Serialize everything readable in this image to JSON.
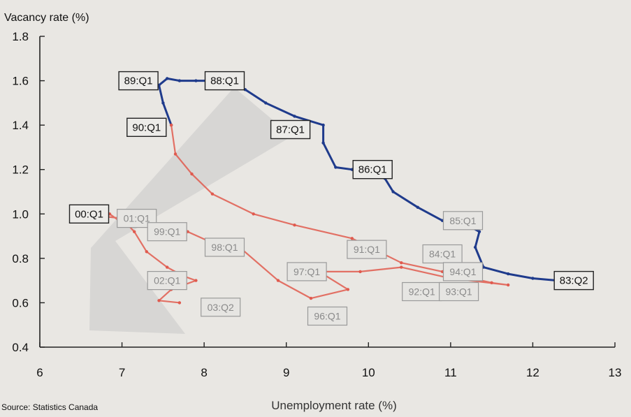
{
  "chart_data": {
    "type": "line",
    "title": "",
    "ylabel": "Vacancy rate (%)",
    "xlabel": "Unemployment rate (%)",
    "source": "Source: Statistics Canada",
    "xlim": [
      6,
      13
    ],
    "ylim": [
      0.4,
      1.8
    ],
    "xticks": [
      "6",
      "7",
      "8",
      "9",
      "10",
      "11",
      "12",
      "13"
    ],
    "yticks": [
      "0.4",
      "0.6",
      "0.8",
      "1.0",
      "1.2",
      "1.4",
      "1.6",
      "1.8"
    ],
    "grid": false,
    "colors": {
      "early": "#1f3b8c",
      "mid": "#5a78b8",
      "late": "#e05a4e",
      "arrow": "#c9c9c9"
    },
    "series": [
      {
        "period": "1983-1990",
        "color": "#1f3b8c",
        "points": [
          [
            12.3,
            0.7
          ],
          [
            12.0,
            0.71
          ],
          [
            11.7,
            0.73
          ],
          [
            11.4,
            0.76
          ],
          [
            11.3,
            0.85
          ],
          [
            11.35,
            0.92
          ],
          [
            11.2,
            0.95
          ],
          [
            10.9,
            0.97
          ],
          [
            10.6,
            1.03
          ],
          [
            10.3,
            1.1
          ],
          [
            10.2,
            1.16
          ],
          [
            9.8,
            1.2
          ],
          [
            9.6,
            1.21
          ],
          [
            9.45,
            1.32
          ],
          [
            9.45,
            1.4
          ],
          [
            9.1,
            1.44
          ],
          [
            8.75,
            1.5
          ],
          [
            8.5,
            1.56
          ],
          [
            8.2,
            1.6
          ],
          [
            7.9,
            1.6
          ],
          [
            7.7,
            1.6
          ],
          [
            7.55,
            1.61
          ],
          [
            7.45,
            1.58
          ],
          [
            7.5,
            1.5
          ],
          [
            7.6,
            1.4
          ]
        ]
      },
      {
        "period": "1990-2003",
        "color": "#e05a4e",
        "points": [
          [
            7.6,
            1.4
          ],
          [
            7.65,
            1.27
          ],
          [
            7.85,
            1.18
          ],
          [
            8.1,
            1.09
          ],
          [
            8.6,
            1.0
          ],
          [
            9.1,
            0.95
          ],
          [
            9.8,
            0.89
          ],
          [
            10.4,
            0.78
          ],
          [
            10.9,
            0.74
          ],
          [
            11.5,
            0.69
          ],
          [
            11.7,
            0.68
          ],
          [
            11.0,
            0.71
          ],
          [
            10.4,
            0.76
          ],
          [
            9.9,
            0.74
          ],
          [
            9.4,
            0.74
          ],
          [
            9.75,
            0.66
          ],
          [
            9.3,
            0.62
          ],
          [
            8.9,
            0.7
          ],
          [
            8.4,
            0.86
          ],
          [
            8.1,
            0.87
          ],
          [
            7.8,
            0.92
          ],
          [
            7.4,
            0.94
          ],
          [
            7.0,
            0.96
          ],
          [
            6.85,
            1.0
          ],
          [
            6.75,
            0.99
          ],
          [
            7.0,
            0.98
          ],
          [
            7.15,
            0.92
          ],
          [
            7.3,
            0.83
          ],
          [
            7.55,
            0.76
          ],
          [
            7.75,
            0.72
          ],
          [
            7.9,
            0.7
          ],
          [
            7.6,
            0.66
          ],
          [
            7.45,
            0.61
          ],
          [
            7.7,
            0.6
          ]
        ]
      }
    ],
    "annotations": [
      {
        "text": "89:Q1",
        "x": 7.2,
        "y": 1.6,
        "style": "dark"
      },
      {
        "text": "88:Q1",
        "x": 8.25,
        "y": 1.6,
        "style": "dark"
      },
      {
        "text": "90:Q1",
        "x": 7.3,
        "y": 1.39,
        "style": "dark"
      },
      {
        "text": "87:Q1",
        "x": 9.05,
        "y": 1.38,
        "style": "dark"
      },
      {
        "text": "86:Q1",
        "x": 10.05,
        "y": 1.2,
        "style": "dark"
      },
      {
        "text": "85:Q1",
        "x": 11.15,
        "y": 0.97,
        "style": "light"
      },
      {
        "text": "00:Q1",
        "x": 6.6,
        "y": 1.0,
        "style": "dark"
      },
      {
        "text": "01:Q1",
        "x": 7.18,
        "y": 0.98,
        "style": "light"
      },
      {
        "text": "99:Q1",
        "x": 7.55,
        "y": 0.92,
        "style": "light"
      },
      {
        "text": "98:Q1",
        "x": 8.25,
        "y": 0.85,
        "style": "light"
      },
      {
        "text": "91:Q1",
        "x": 9.98,
        "y": 0.84,
        "style": "light"
      },
      {
        "text": "84:Q1",
        "x": 10.9,
        "y": 0.82,
        "style": "light"
      },
      {
        "text": "97:Q1",
        "x": 9.25,
        "y": 0.74,
        "style": "light"
      },
      {
        "text": "94:Q1",
        "x": 11.15,
        "y": 0.74,
        "style": "light"
      },
      {
        "text": "83:Q2",
        "x": 12.5,
        "y": 0.7,
        "style": "dark"
      },
      {
        "text": "02:Q1",
        "x": 7.55,
        "y": 0.7,
        "style": "light"
      },
      {
        "text": "92:Q1",
        "x": 10.65,
        "y": 0.65,
        "style": "light"
      },
      {
        "text": "93:Q1",
        "x": 11.1,
        "y": 0.65,
        "style": "light"
      },
      {
        "text": "03:Q2",
        "x": 8.2,
        "y": 0.58,
        "style": "light"
      },
      {
        "text": "96:Q1",
        "x": 9.5,
        "y": 0.54,
        "style": "light"
      }
    ]
  }
}
